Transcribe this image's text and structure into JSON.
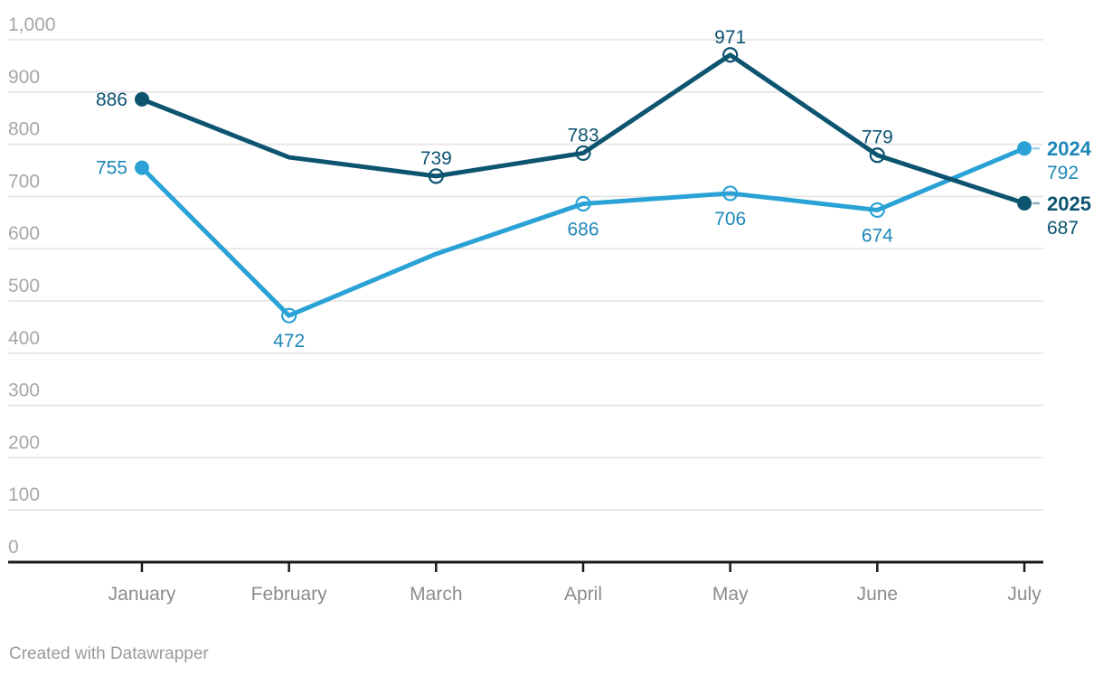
{
  "chart_data": {
    "type": "line",
    "categories": [
      "January",
      "February",
      "March",
      "April",
      "May",
      "June",
      "July"
    ],
    "series": [
      {
        "name": "2025",
        "line_color": "#0d5471",
        "label_color": "#0d5471",
        "values": [
          886,
          775,
          739,
          783,
          971,
          779,
          687
        ],
        "point_labels": [
          "886",
          null,
          "739",
          "783",
          "971",
          "779",
          null
        ],
        "label_placement": [
          "left",
          null,
          "above",
          "above",
          "above",
          "above",
          null
        ],
        "markers": [
          "filled",
          "none",
          "open",
          "open",
          "open",
          "open",
          "filled"
        ],
        "end_label": {
          "year": "2025",
          "value": "687"
        }
      },
      {
        "name": "2024",
        "line_color": "#2aa2d6",
        "label_color": "#1d87b8",
        "values": [
          755,
          472,
          590,
          686,
          706,
          674,
          792
        ],
        "point_labels": [
          "755",
          "472",
          null,
          "686",
          "706",
          "674",
          null
        ],
        "label_placement": [
          "left",
          "below",
          null,
          "below",
          "below",
          "below",
          null
        ],
        "markers": [
          "filled",
          "open",
          "none",
          "open",
          "open",
          "open",
          "filled"
        ],
        "end_label": {
          "year": "2024",
          "value": "792"
        }
      }
    ],
    "y_axis": {
      "min": 0,
      "max": 1000,
      "step": 100,
      "tick_labels": [
        "0",
        "100",
        "200",
        "300",
        "400",
        "500",
        "600",
        "700",
        "800",
        "900",
        "1,000"
      ]
    },
    "x_axis": {
      "tick_labels": [
        "January",
        "February",
        "March",
        "April",
        "May",
        "June",
        "July"
      ]
    },
    "grid": true,
    "legend_position": "right-of-line-ends"
  },
  "footer": {
    "credit": "Created with Datawrapper"
  },
  "colors": {
    "background": "#ffffff",
    "gridline": "#e3e3e3",
    "axis_line": "#1a1a1a",
    "y_label": "#a7a7a7",
    "x_label": "#8c8c8c",
    "footer_text": "#9b9b9b"
  }
}
